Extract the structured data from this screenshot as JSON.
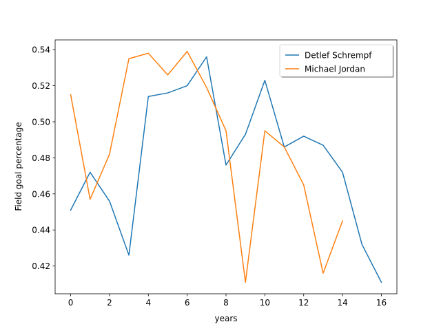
{
  "chart_data": {
    "type": "line",
    "title": "",
    "xlabel": "years",
    "ylabel": "Field goal percentage",
    "xlim": [
      -0.8,
      16.8
    ],
    "ylim": [
      0.4046,
      0.5454
    ],
    "xticks": [
      0,
      2,
      4,
      6,
      8,
      10,
      12,
      14,
      16
    ],
    "yticks": [
      0.42,
      0.44,
      0.46,
      0.48,
      0.5,
      0.52,
      0.54
    ],
    "xtick_labels": [
      "0",
      "2",
      "4",
      "6",
      "8",
      "10",
      "12",
      "14",
      "16"
    ],
    "ytick_labels": [
      "0.42",
      "0.44",
      "0.46",
      "0.48",
      "0.50",
      "0.52",
      "0.54"
    ],
    "grid": false,
    "legend_position": "top-right",
    "series": [
      {
        "name": "Detlef Schrempf",
        "color": "#1f77b4",
        "x": [
          0,
          1,
          2,
          3,
          4,
          5,
          6,
          7,
          8,
          9,
          10,
          11,
          12,
          13,
          14,
          15,
          16
        ],
        "values": [
          0.451,
          0.472,
          0.456,
          0.426,
          0.514,
          0.516,
          0.52,
          0.536,
          0.476,
          0.493,
          0.523,
          0.486,
          0.492,
          0.487,
          0.472,
          0.432,
          0.411
        ]
      },
      {
        "name": "Michael Jordan",
        "color": "#ff7f0e",
        "x": [
          0,
          1,
          2,
          3,
          4,
          5,
          6,
          7,
          8,
          9,
          10,
          11,
          12,
          13,
          14
        ],
        "values": [
          0.515,
          0.457,
          0.482,
          0.535,
          0.538,
          0.526,
          0.539,
          0.519,
          0.495,
          0.411,
          0.495,
          0.486,
          0.465,
          0.416,
          0.445
        ]
      }
    ]
  }
}
